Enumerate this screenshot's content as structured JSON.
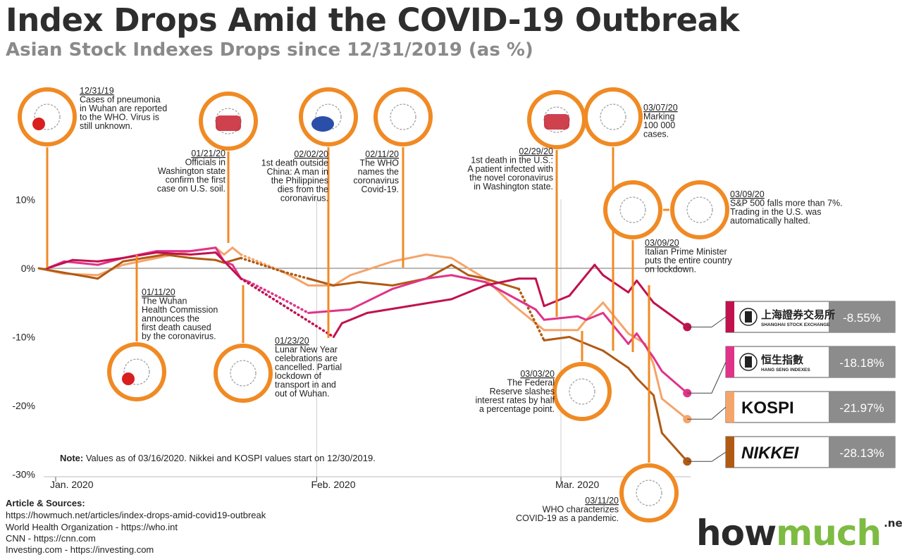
{
  "title": "Index Drops Amid the COVID-19 Outbreak",
  "subtitle": "Asian Stock Indexes Drops since 12/31/2019 (as %)",
  "chart_data": {
    "type": "line",
    "title": "Index Drops Amid the COVID-19 Outbreak",
    "subtitle": "Asian Stock Indexes Drops since 12/31/2019 (as %)",
    "xlabel": "",
    "ylabel": "",
    "ylim": [
      -30,
      10
    ],
    "yticks": [
      10,
      0,
      -10,
      -20,
      -30
    ],
    "ytick_labels": [
      "10%",
      "0%",
      "-10%",
      "-20%",
      "-30%"
    ],
    "xticks": [
      {
        "date": "2020-01-01",
        "label": "Jan. 2020"
      },
      {
        "date": "2020-02-01",
        "label": "Feb. 2020"
      },
      {
        "date": "2020-03-01",
        "label": "Mar. 2020"
      }
    ],
    "xlim": [
      "2019-12-30",
      "2020-03-16"
    ],
    "grid": "vertical month lines",
    "legend": "right",
    "note_label": "Note:",
    "note": "Values as of 03/16/2020. Nikkei and KOSPI values start on 12/30/2019.",
    "series": [
      {
        "name": "Shanghai Stock Exchange",
        "short": "SHANGHAI STOCK EXCHANGE",
        "native": "上海證券交易所",
        "final_label": "-8.55%",
        "color": "#c0124e",
        "points": [
          [
            "2019-12-31",
            0
          ],
          [
            "2020-01-03",
            1.2
          ],
          [
            "2020-01-06",
            1.0
          ],
          [
            "2020-01-09",
            1.5
          ],
          [
            "2020-01-13",
            2.3
          ],
          [
            "2020-01-17",
            2.0
          ],
          [
            "2020-01-20",
            2.3
          ],
          [
            "2020-01-23",
            -1.5
          ],
          [
            "2020-02-03",
            -10.0
          ],
          [
            "2020-02-04",
            -8.0
          ],
          [
            "2020-02-07",
            -6.5
          ],
          [
            "2020-02-12",
            -5.5
          ],
          [
            "2020-02-17",
            -4.5
          ],
          [
            "2020-02-21",
            -2.5
          ],
          [
            "2020-02-25",
            -1.5
          ],
          [
            "2020-02-27",
            -1.5
          ],
          [
            "2020-02-28",
            -5.5
          ],
          [
            "2020-03-02",
            -4.0
          ],
          [
            "2020-03-05",
            0.5
          ],
          [
            "2020-03-06",
            -1.0
          ],
          [
            "2020-03-09",
            -3.5
          ],
          [
            "2020-03-10",
            -1.8
          ],
          [
            "2020-03-12",
            -5.0
          ],
          [
            "2020-03-16",
            -8.55
          ]
        ]
      },
      {
        "name": "Hang Seng Indexes",
        "short": "HANG SENG INDEXES",
        "native": "恒生指數",
        "final_label": "-18.18%",
        "color": "#e0338a",
        "points": [
          [
            "2019-12-31",
            0
          ],
          [
            "2020-01-02",
            1.0
          ],
          [
            "2020-01-06",
            0.5
          ],
          [
            "2020-01-09",
            1.5
          ],
          [
            "2020-01-13",
            2.5
          ],
          [
            "2020-01-17",
            2.5
          ],
          [
            "2020-01-20",
            3.0
          ],
          [
            "2020-01-21",
            1.0
          ],
          [
            "2020-01-22",
            0.5
          ],
          [
            "2020-01-23",
            -1.5
          ],
          [
            "2020-01-24",
            -2.0
          ],
          [
            "2020-01-28",
            -4.5
          ],
          [
            "2020-01-31",
            -6.5
          ],
          [
            "2020-02-05",
            -6.0
          ],
          [
            "2020-02-10",
            -3.0
          ],
          [
            "2020-02-14",
            -1.5
          ],
          [
            "2020-02-17",
            -1.0
          ],
          [
            "2020-02-19",
            -1.5
          ],
          [
            "2020-02-21",
            -2.0
          ],
          [
            "2020-02-24",
            -4.0
          ],
          [
            "2020-02-27",
            -6.0
          ],
          [
            "2020-02-28",
            -7.5
          ],
          [
            "2020-03-03",
            -7.0
          ],
          [
            "2020-03-04",
            -7.5
          ],
          [
            "2020-03-06",
            -6.5
          ],
          [
            "2020-03-09",
            -11.0
          ],
          [
            "2020-03-10",
            -9.5
          ],
          [
            "2020-03-12",
            -13.0
          ],
          [
            "2020-03-13",
            -15.0
          ],
          [
            "2020-03-16",
            -18.18
          ]
        ]
      },
      {
        "name": "KOSPI",
        "short": "KOSPI",
        "native": "",
        "final_label": "-21.97%",
        "color": "#f5a46a",
        "points": [
          [
            "2019-12-30",
            0
          ],
          [
            "2020-01-02",
            -0.8
          ],
          [
            "2020-01-06",
            -1.0
          ],
          [
            "2020-01-09",
            0.5
          ],
          [
            "2020-01-13",
            1.5
          ],
          [
            "2020-01-17",
            2.5
          ],
          [
            "2020-01-20",
            3.0
          ],
          [
            "2020-01-21",
            2.0
          ],
          [
            "2020-01-22",
            3.0
          ],
          [
            "2020-01-23",
            2.0
          ],
          [
            "2020-01-28",
            -0.5
          ],
          [
            "2020-01-31",
            -2.5
          ],
          [
            "2020-02-03",
            -2.5
          ],
          [
            "2020-02-05",
            -1.0
          ],
          [
            "2020-02-10",
            1.0
          ],
          [
            "2020-02-14",
            2.0
          ],
          [
            "2020-02-17",
            1.5
          ],
          [
            "2020-02-21",
            -1.5
          ],
          [
            "2020-02-24",
            -5.0
          ],
          [
            "2020-02-28",
            -9.0
          ],
          [
            "2020-03-03",
            -9.0
          ],
          [
            "2020-03-04",
            -7.5
          ],
          [
            "2020-03-06",
            -5.0
          ],
          [
            "2020-03-09",
            -9.5
          ],
          [
            "2020-03-11",
            -11.0
          ],
          [
            "2020-03-12",
            -14.0
          ],
          [
            "2020-03-13",
            -19.0
          ],
          [
            "2020-03-16",
            -21.97
          ]
        ]
      },
      {
        "name": "Nikkei",
        "short": "NIKKEI",
        "native": "",
        "final_label": "-28.13%",
        "color": "#b05a14",
        "points": [
          [
            "2019-12-30",
            0
          ],
          [
            "2020-01-06",
            -1.5
          ],
          [
            "2020-01-09",
            1.0
          ],
          [
            "2020-01-14",
            2.0
          ],
          [
            "2020-01-17",
            1.5
          ],
          [
            "2020-01-20",
            1.2
          ],
          [
            "2020-01-21",
            0.8
          ],
          [
            "2020-01-23",
            1.5
          ],
          [
            "2020-01-28",
            -0.5
          ],
          [
            "2020-01-31",
            -1.5
          ],
          [
            "2020-02-03",
            -2.5
          ],
          [
            "2020-02-06",
            -2.0
          ],
          [
            "2020-02-10",
            -2.5
          ],
          [
            "2020-02-14",
            -1.5
          ],
          [
            "2020-02-17",
            0.5
          ],
          [
            "2020-02-19",
            -1.0
          ],
          [
            "2020-02-21",
            -1.5
          ],
          [
            "2020-02-25",
            -3.0
          ],
          [
            "2020-02-28",
            -10.5
          ],
          [
            "2020-03-02",
            -10.0
          ],
          [
            "2020-03-04",
            -11.0
          ],
          [
            "2020-03-06",
            -12.0
          ],
          [
            "2020-03-09",
            -14.5
          ],
          [
            "2020-03-10",
            -16.0
          ],
          [
            "2020-03-12",
            -18.5
          ],
          [
            "2020-03-13",
            -24.0
          ],
          [
            "2020-03-16",
            -28.13
          ]
        ]
      }
    ]
  },
  "annotations": [
    {
      "date": "12/31/19",
      "text": "Cases of pneumonia\nin Wuhan are reported\nto the WHO. Virus is\nstill unknown.",
      "icon": "china-map-doctor-icon"
    },
    {
      "date": "01/11/20",
      "text": "The Wuhan\nHealth Commission\nannounces the\nfirst death caused\nby the coronavirus.",
      "icon": "hubei-map-icon"
    },
    {
      "date": "01/21/20",
      "text": "Officials in\nWashington state\nconfirm the first\ncase on U.S. soil.",
      "icon": "us-map-virus-icon"
    },
    {
      "date": "01/23/20",
      "text": "Lunar New Year\ncelebrations are\ncancelled. Partial\nlockdown of\ntransport in and\nout of Wuhan.",
      "icon": "dragon-icon"
    },
    {
      "date": "02/02/20",
      "text": "1st death outside\nChina: A man in\nthe Philippines\ndies from the\ncoronavirus.",
      "icon": "philippines-flag-icon"
    },
    {
      "date": "02/11/20",
      "text": "The WHO\nnames the\ncoronavirus\nCovid-19.",
      "icon": "who-covid-icon"
    },
    {
      "date": "02/29/20",
      "text": "1st death in the U.S.:\nA patient infected with\nthe novel coronavirus\nin Washington state.",
      "icon": "us-flag-icon"
    },
    {
      "date": "03/03/20",
      "text": "The Federal\nReserve slashes\ninterest rates by half\na percentage point.",
      "icon": "federal-reserve-icon"
    },
    {
      "date": "03/07/20",
      "text": "Marking\n100 000\ncases.",
      "icon": "virus-cluster-icon"
    },
    {
      "date": "03/09/20",
      "text": "Italian Prime Minister\nputs the entire country\non lockdown.",
      "icon": "italy-map-lock-icon"
    },
    {
      "date": "03/09/20",
      "text": "S&P 500 falls more than 7%.\nTrading in the U.S. was\nautomatically halted.",
      "icon": "sp500-crash-icon"
    },
    {
      "date": "03/11/20",
      "text": "WHO characterizes\nCOVID-19 as a pandemic.",
      "icon": "globe-virus-icon"
    }
  ],
  "sources": {
    "heading": "Article & Sources:",
    "lines": [
      "https://howmuch.net/articles/index-drops-amid-covid19-outbreak",
      "World Health Organization - https://who.int",
      "CNN - https://cnn.com",
      "Investing.com - https://investing.com"
    ]
  },
  "logo": {
    "how": "how",
    "much": "much",
    "net": ".net"
  },
  "colors": {
    "accent": "#f08a24",
    "neutral_grey": "#8c8c8c",
    "box_border": "#444444"
  }
}
